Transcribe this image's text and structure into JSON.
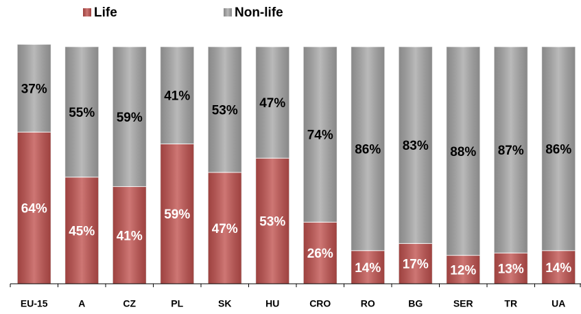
{
  "chart_data": {
    "type": "stacked-bar",
    "categories": [
      "EU-15",
      "A",
      "CZ",
      "PL",
      "SK",
      "HU",
      "CRO",
      "RO",
      "BG",
      "SER",
      "TR",
      "UA"
    ],
    "series": [
      {
        "name": "Life",
        "color": "#c0504d",
        "label_color": "#ffffff",
        "values": [
          64,
          45,
          41,
          59,
          47,
          53,
          26,
          14,
          17,
          12,
          13,
          14
        ],
        "value_labels": [
          "64%",
          "45%",
          "41%",
          "59%",
          "47%",
          "53%",
          "26%",
          "14%",
          "17%",
          "12%",
          "13%",
          "14%"
        ]
      },
      {
        "name": "Non-life",
        "color": "#a6a6a6",
        "label_color": "#000000",
        "values": [
          37,
          55,
          59,
          41,
          53,
          47,
          74,
          86,
          83,
          88,
          87,
          86
        ],
        "value_labels": [
          "37%",
          "55%",
          "59%",
          "41%",
          "53%",
          "47%",
          "74%",
          "86%",
          "83%",
          "88%",
          "87%",
          "86%"
        ]
      }
    ],
    "ylim": [
      0,
      100
    ],
    "legend": "top"
  }
}
